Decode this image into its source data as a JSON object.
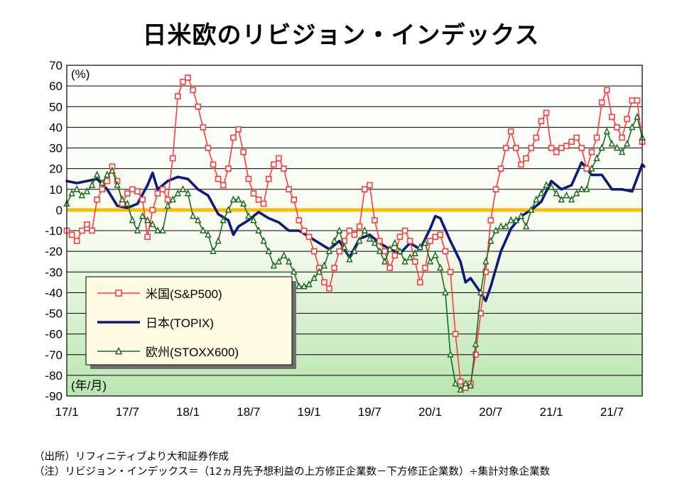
{
  "chart_data": {
    "type": "line",
    "title": "日米欧のリビジョン・インデックス",
    "ylabel": "(%)",
    "xlabel": "(年/月)",
    "ylim": [
      -90,
      70
    ],
    "yticks": [
      70,
      60,
      50,
      40,
      30,
      20,
      10,
      0,
      -10,
      -20,
      -30,
      -40,
      -50,
      -60,
      -70,
      -80,
      -90
    ],
    "x_unit": "months since 2017/1",
    "xlim": [
      0,
      57
    ],
    "xticks": [
      {
        "pos": 0,
        "label": "17/1"
      },
      {
        "pos": 6,
        "label": "17/7"
      },
      {
        "pos": 12,
        "label": "18/1"
      },
      {
        "pos": 18,
        "label": "18/7"
      },
      {
        "pos": 24,
        "label": "19/1"
      },
      {
        "pos": 30,
        "label": "19/7"
      },
      {
        "pos": 36,
        "label": "20/1"
      },
      {
        "pos": 42,
        "label": "20/7"
      },
      {
        "pos": 48,
        "label": "21/1"
      },
      {
        "pos": 54,
        "label": "21/7"
      }
    ],
    "zero_line": {
      "value": 0,
      "color": "#f5c000"
    },
    "legend_position": "lower-left",
    "series": [
      {
        "name": "米国(S&P500)",
        "color": "#ff3b3b",
        "marker": "square",
        "points": [
          [
            0,
            -10
          ],
          [
            0.5,
            -12
          ],
          [
            1,
            -15
          ],
          [
            1.5,
            -10
          ],
          [
            2,
            -7
          ],
          [
            2.5,
            -10
          ],
          [
            3,
            5
          ],
          [
            3.5,
            10
          ],
          [
            4,
            14
          ],
          [
            4.5,
            21
          ],
          [
            5,
            14
          ],
          [
            5.5,
            3
          ],
          [
            6,
            8
          ],
          [
            6.5,
            10
          ],
          [
            7,
            9
          ],
          [
            7.5,
            5
          ],
          [
            8,
            -13
          ],
          [
            8.5,
            0
          ],
          [
            9,
            8
          ],
          [
            9.5,
            10
          ],
          [
            10,
            5
          ],
          [
            10.5,
            25
          ],
          [
            11,
            55
          ],
          [
            11.5,
            62
          ],
          [
            12,
            64
          ],
          [
            12.5,
            58
          ],
          [
            13,
            50
          ],
          [
            13.5,
            40
          ],
          [
            14,
            30
          ],
          [
            14.5,
            22
          ],
          [
            15,
            15
          ],
          [
            15.5,
            12
          ],
          [
            16,
            20
          ],
          [
            16.5,
            35
          ],
          [
            17,
            39
          ],
          [
            17.5,
            28
          ],
          [
            18,
            15
          ],
          [
            18.5,
            8
          ],
          [
            19,
            5
          ],
          [
            19.5,
            3
          ],
          [
            20,
            15
          ],
          [
            20.5,
            22
          ],
          [
            21,
            25
          ],
          [
            21.5,
            20
          ],
          [
            22,
            10
          ],
          [
            22.5,
            5
          ],
          [
            23,
            -5
          ],
          [
            23.5,
            -10
          ],
          [
            24,
            -13
          ],
          [
            24.5,
            -20
          ],
          [
            25,
            -28
          ],
          [
            25.5,
            -35
          ],
          [
            26,
            -38
          ],
          [
            26.5,
            -28
          ],
          [
            27,
            -20
          ],
          [
            27.5,
            -15
          ],
          [
            28,
            -10
          ],
          [
            28.5,
            -12
          ],
          [
            29,
            -8
          ],
          [
            29.5,
            10
          ],
          [
            30,
            12
          ],
          [
            30.5,
            -5
          ],
          [
            31,
            -15
          ],
          [
            31.5,
            -20
          ],
          [
            32,
            -28
          ],
          [
            32.5,
            -22
          ],
          [
            33,
            -13
          ],
          [
            33.5,
            -10
          ],
          [
            34,
            -15
          ],
          [
            34.5,
            -25
          ],
          [
            35,
            -35
          ],
          [
            35.5,
            -28
          ],
          [
            36,
            -15
          ],
          [
            36.5,
            -13
          ],
          [
            37,
            -12
          ],
          [
            37.5,
            -20
          ],
          [
            38,
            -30
          ],
          [
            38.5,
            -60
          ],
          [
            39,
            -83
          ],
          [
            39.5,
            -86
          ],
          [
            40,
            -84
          ],
          [
            40.5,
            -70
          ],
          [
            41,
            -50
          ],
          [
            41.5,
            -30
          ],
          [
            42,
            -5
          ],
          [
            42.5,
            10
          ],
          [
            43,
            20
          ],
          [
            43.5,
            30
          ],
          [
            44,
            38
          ],
          [
            44.5,
            30
          ],
          [
            45,
            22
          ],
          [
            45.5,
            25
          ],
          [
            46,
            30
          ],
          [
            46.5,
            35
          ],
          [
            47,
            43
          ],
          [
            47.5,
            47
          ],
          [
            48,
            30
          ],
          [
            48.5,
            28
          ],
          [
            49,
            30
          ],
          [
            49.5,
            31
          ],
          [
            50,
            33
          ],
          [
            50.5,
            35
          ],
          [
            51,
            30
          ],
          [
            51.5,
            20
          ],
          [
            52,
            28
          ],
          [
            52.5,
            35
          ],
          [
            53,
            52
          ],
          [
            53.5,
            58
          ],
          [
            54,
            45
          ],
          [
            54.5,
            40
          ],
          [
            55,
            35
          ],
          [
            55.5,
            44
          ],
          [
            56,
            53
          ],
          [
            56.5,
            53
          ],
          [
            57,
            33
          ]
        ]
      },
      {
        "name": "日本(TOPIX)",
        "color": "#0e1a7a",
        "marker": "none",
        "points": [
          [
            0,
            14
          ],
          [
            1,
            13
          ],
          [
            2,
            14
          ],
          [
            3,
            15
          ],
          [
            4,
            10
          ],
          [
            5,
            2
          ],
          [
            6,
            1
          ],
          [
            7,
            3
          ],
          [
            8,
            12
          ],
          [
            8.5,
            18
          ],
          [
            9,
            10
          ],
          [
            10,
            14
          ],
          [
            11,
            16
          ],
          [
            12,
            15
          ],
          [
            13,
            10
          ],
          [
            14,
            7
          ],
          [
            15,
            -2
          ],
          [
            16,
            -5
          ],
          [
            16.5,
            -12
          ],
          [
            17,
            -8
          ],
          [
            18,
            -5
          ],
          [
            19,
            -1
          ],
          [
            20,
            -4
          ],
          [
            21,
            -6
          ],
          [
            22,
            -10
          ],
          [
            23,
            -10
          ],
          [
            24,
            -13
          ],
          [
            25,
            -16
          ],
          [
            26,
            -19
          ],
          [
            27,
            -15
          ],
          [
            28,
            -23
          ],
          [
            29,
            -14
          ],
          [
            30,
            -12
          ],
          [
            31,
            -16
          ],
          [
            32,
            -19
          ],
          [
            33,
            -21
          ],
          [
            34,
            -16
          ],
          [
            35,
            -19
          ],
          [
            36,
            -9
          ],
          [
            36.5,
            -3
          ],
          [
            37,
            -4
          ],
          [
            38,
            -15
          ],
          [
            39,
            -25
          ],
          [
            39.5,
            -35
          ],
          [
            40,
            -33
          ],
          [
            41,
            -40
          ],
          [
            41.5,
            -44
          ],
          [
            42,
            -37
          ],
          [
            43,
            -20
          ],
          [
            44,
            -9
          ],
          [
            45,
            -3
          ],
          [
            46,
            0
          ],
          [
            47,
            4
          ],
          [
            48,
            14
          ],
          [
            49,
            10
          ],
          [
            50,
            12
          ],
          [
            51,
            23
          ],
          [
            52,
            17
          ],
          [
            53,
            17
          ],
          [
            54,
            10
          ],
          [
            55,
            10
          ],
          [
            56,
            9
          ],
          [
            57,
            22
          ],
          [
            57.2,
            21
          ]
        ]
      },
      {
        "name": "欧州(STOXX600)",
        "color": "#1e6b1e",
        "marker": "triangle",
        "points": [
          [
            0,
            3
          ],
          [
            0.5,
            8
          ],
          [
            1,
            10
          ],
          [
            1.5,
            7
          ],
          [
            2,
            9
          ],
          [
            2.5,
            12
          ],
          [
            3,
            17
          ],
          [
            3.5,
            13
          ],
          [
            4,
            17
          ],
          [
            4.5,
            19
          ],
          [
            5,
            12
          ],
          [
            5.5,
            5
          ],
          [
            6,
            3
          ],
          [
            6.5,
            -5
          ],
          [
            7,
            -10
          ],
          [
            7.5,
            -3
          ],
          [
            8,
            -5
          ],
          [
            8.5,
            -7
          ],
          [
            9,
            -10
          ],
          [
            9.5,
            -10
          ],
          [
            10,
            2
          ],
          [
            10.5,
            5
          ],
          [
            11,
            8
          ],
          [
            11.5,
            10
          ],
          [
            12,
            8
          ],
          [
            12.5,
            -3
          ],
          [
            13,
            -5
          ],
          [
            13.5,
            -10
          ],
          [
            14,
            -12
          ],
          [
            14.5,
            -20
          ],
          [
            15,
            -15
          ],
          [
            15.5,
            -5
          ],
          [
            16,
            0
          ],
          [
            16.5,
            5
          ],
          [
            17,
            5
          ],
          [
            17.5,
            3
          ],
          [
            18,
            -3
          ],
          [
            18.5,
            -5
          ],
          [
            19,
            -10
          ],
          [
            19.5,
            -15
          ],
          [
            20,
            -20
          ],
          [
            20.5,
            -27
          ],
          [
            21,
            -25
          ],
          [
            21.5,
            -22
          ],
          [
            22,
            -25
          ],
          [
            22.5,
            -30
          ],
          [
            23,
            -37
          ],
          [
            23.5,
            -37
          ],
          [
            24,
            -36
          ],
          [
            24.5,
            -33
          ],
          [
            25,
            -30
          ],
          [
            25.5,
            -27
          ],
          [
            26,
            -20
          ],
          [
            26.5,
            -15
          ],
          [
            27,
            -10
          ],
          [
            27.5,
            -18
          ],
          [
            28,
            -24
          ],
          [
            28.5,
            -20
          ],
          [
            29,
            -15
          ],
          [
            29.5,
            -10
          ],
          [
            30,
            -14
          ],
          [
            30.5,
            -16
          ],
          [
            31,
            -20
          ],
          [
            31.5,
            -25
          ],
          [
            32,
            -19
          ],
          [
            32.5,
            -16
          ],
          [
            33,
            -20
          ],
          [
            33.5,
            -25
          ],
          [
            34,
            -23
          ],
          [
            34.5,
            -21
          ],
          [
            35,
            -18
          ],
          [
            35.5,
            -16
          ],
          [
            36,
            -25
          ],
          [
            36.5,
            -22
          ],
          [
            37,
            -28
          ],
          [
            37.5,
            -40
          ],
          [
            38,
            -70
          ],
          [
            38.5,
            -84
          ],
          [
            39,
            -87
          ],
          [
            39.5,
            -84
          ],
          [
            40,
            -85
          ],
          [
            40.5,
            -65
          ],
          [
            41,
            -40
          ],
          [
            41.5,
            -25
          ],
          [
            42,
            -15
          ],
          [
            42.5,
            -10
          ],
          [
            43,
            -8
          ],
          [
            43.5,
            -8
          ],
          [
            44,
            -5
          ],
          [
            44.5,
            -5
          ],
          [
            45,
            -3
          ],
          [
            45.5,
            -8
          ],
          [
            46,
            0
          ],
          [
            46.5,
            5
          ],
          [
            47,
            8
          ],
          [
            47.5,
            12
          ],
          [
            48,
            11
          ],
          [
            48.5,
            8
          ],
          [
            49,
            5
          ],
          [
            49.5,
            7
          ],
          [
            50,
            5
          ],
          [
            50.5,
            8
          ],
          [
            51,
            10
          ],
          [
            51.5,
            10
          ],
          [
            52,
            20
          ],
          [
            52.5,
            25
          ],
          [
            53,
            30
          ],
          [
            53.5,
            38
          ],
          [
            54,
            32
          ],
          [
            54.5,
            30
          ],
          [
            55,
            28
          ],
          [
            55.5,
            32
          ],
          [
            56,
            40
          ],
          [
            56.5,
            45
          ],
          [
            57,
            35
          ]
        ]
      }
    ]
  },
  "notes": {
    "source": "（出所）リフィニティブより大和証券作成",
    "definition": "（注）リビジョン・インデックス＝（12ヵ月先予想利益の上方修正企業数－下方修正企業数）÷集計対象企業数"
  }
}
